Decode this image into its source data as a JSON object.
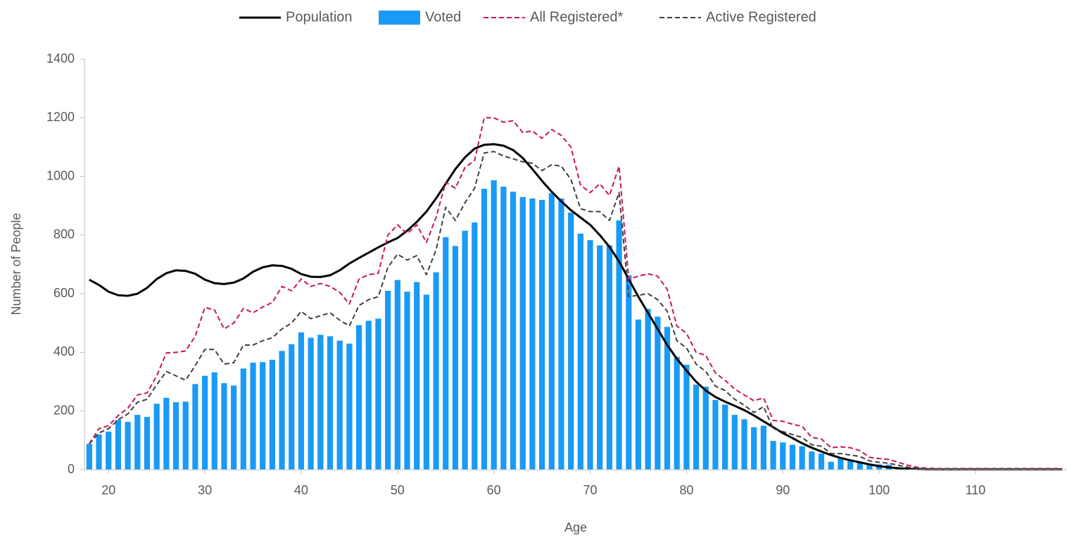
{
  "chart_data": {
    "type": "bar",
    "xlabel": "Age",
    "ylabel": "Number of People",
    "x": [
      18,
      19,
      20,
      21,
      22,
      23,
      24,
      25,
      26,
      27,
      28,
      29,
      30,
      31,
      32,
      33,
      34,
      35,
      36,
      37,
      38,
      39,
      40,
      41,
      42,
      43,
      44,
      45,
      46,
      47,
      48,
      49,
      50,
      51,
      52,
      53,
      54,
      55,
      56,
      57,
      58,
      59,
      60,
      61,
      62,
      63,
      64,
      65,
      66,
      67,
      68,
      69,
      70,
      71,
      72,
      73,
      74,
      75,
      76,
      77,
      78,
      79,
      80,
      81,
      82,
      83,
      84,
      85,
      86,
      87,
      88,
      89,
      90,
      91,
      92,
      93,
      94,
      95,
      96,
      97,
      98,
      99,
      100,
      101,
      102,
      103,
      104,
      105,
      106,
      107,
      108,
      109,
      110,
      111,
      112,
      113,
      114,
      115,
      116,
      117,
      118,
      119
    ],
    "series": [
      {
        "name": "Population",
        "type": "line",
        "color": "#000000",
        "dash": "solid",
        "values": [
          648,
          630,
          607,
          595,
          593,
          600,
          620,
          650,
          670,
          680,
          678,
          668,
          648,
          636,
          633,
          638,
          652,
          675,
          690,
          697,
          695,
          685,
          667,
          658,
          657,
          663,
          680,
          703,
          722,
          740,
          758,
          775,
          790,
          815,
          845,
          880,
          925,
          975,
          1025,
          1065,
          1095,
          1108,
          1110,
          1105,
          1090,
          1063,
          1025,
          985,
          948,
          915,
          885,
          860,
          835,
          800,
          760,
          710,
          650,
          590,
          535,
          480,
          425,
          378,
          338,
          300,
          270,
          248,
          232,
          218,
          203,
          185,
          165,
          145,
          125,
          108,
          90,
          75,
          62,
          50,
          40,
          32,
          25,
          18,
          12,
          8,
          5,
          3,
          2,
          1,
          1,
          1,
          1,
          1,
          1,
          1,
          1,
          1,
          1,
          1,
          1,
          1,
          1,
          1
        ]
      },
      {
        "name": "Voted",
        "type": "bar",
        "color": "#1a9af7",
        "values": [
          88,
          120,
          130,
          170,
          163,
          187,
          180,
          225,
          245,
          230,
          232,
          292,
          320,
          332,
          295,
          287,
          345,
          365,
          367,
          375,
          405,
          428,
          468,
          450,
          460,
          455,
          440,
          430,
          493,
          508,
          515,
          610,
          647,
          607,
          640,
          597,
          673,
          793,
          763,
          815,
          843,
          958,
          987,
          965,
          948,
          930,
          925,
          920,
          943,
          925,
          877,
          805,
          783,
          765,
          765,
          850,
          663,
          512,
          548,
          522,
          487,
          385,
          358,
          290,
          283,
          238,
          222,
          187,
          172,
          145,
          150,
          98,
          93,
          85,
          80,
          62,
          55,
          27,
          42,
          35,
          28,
          20,
          18,
          17,
          8,
          3,
          2,
          1,
          1,
          1,
          1,
          1,
          1,
          1,
          1,
          1,
          1,
          1,
          1,
          1,
          1,
          1
        ]
      },
      {
        "name": "All Registered*",
        "type": "line",
        "color": "#c8174d",
        "dash": "dashed",
        "values": [
          88,
          140,
          150,
          185,
          210,
          255,
          262,
          320,
          398,
          400,
          405,
          455,
          553,
          545,
          480,
          500,
          550,
          535,
          555,
          570,
          625,
          610,
          650,
          625,
          635,
          625,
          605,
          565,
          650,
          665,
          670,
          800,
          835,
          805,
          835,
          775,
          860,
          980,
          960,
          1030,
          1055,
          1200,
          1200,
          1185,
          1190,
          1150,
          1155,
          1130,
          1160,
          1140,
          1100,
          970,
          945,
          975,
          935,
          1035,
          650,
          660,
          668,
          660,
          615,
          490,
          465,
          400,
          390,
          330,
          305,
          275,
          255,
          235,
          245,
          168,
          165,
          155,
          148,
          110,
          105,
          75,
          78,
          75,
          65,
          42,
          38,
          35,
          25,
          15,
          8,
          5,
          4,
          4,
          4,
          4,
          4,
          4,
          4,
          4,
          4,
          4,
          4,
          4,
          4,
          4
        ]
      },
      {
        "name": "Active Registered",
        "type": "line",
        "color": "#404040",
        "dash": "dashed",
        "values": [
          88,
          125,
          140,
          170,
          190,
          230,
          240,
          290,
          335,
          320,
          305,
          355,
          410,
          410,
          360,
          365,
          425,
          425,
          440,
          450,
          480,
          500,
          540,
          515,
          525,
          535,
          510,
          490,
          560,
          580,
          590,
          690,
          735,
          715,
          730,
          665,
          750,
          895,
          850,
          910,
          960,
          1080,
          1085,
          1070,
          1060,
          1050,
          1045,
          1020,
          1040,
          1035,
          990,
          890,
          880,
          880,
          850,
          945,
          590,
          595,
          600,
          580,
          540,
          440,
          415,
          360,
          335,
          285,
          270,
          240,
          220,
          195,
          215,
          140,
          130,
          120,
          110,
          85,
          80,
          55,
          55,
          50,
          45,
          30,
          25,
          22,
          15,
          8,
          5,
          3,
          3,
          3,
          3,
          3,
          3,
          3,
          3,
          3,
          3,
          3,
          3,
          3,
          3,
          3
        ]
      }
    ],
    "xlim": [
      17.5,
      119.5
    ],
    "xticks": [
      20,
      30,
      40,
      50,
      60,
      70,
      80,
      90,
      100,
      110
    ],
    "ylim": [
      0,
      1400
    ],
    "yticks": [
      0,
      200,
      400,
      600,
      800,
      1000,
      1200,
      1400
    ],
    "legend": "top"
  }
}
